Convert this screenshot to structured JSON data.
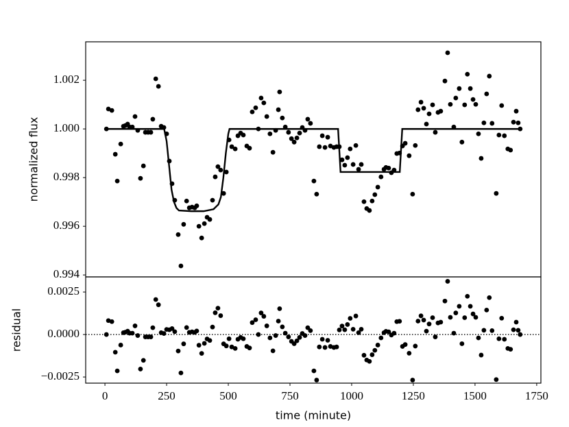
{
  "chart_data": [
    {
      "type": "scatter",
      "ylabel": "normalized flux",
      "color": "#000000",
      "xlim": [
        -78,
        1767
      ],
      "ylim": [
        0.99392,
        1.00358
      ],
      "yticks": [
        0.994,
        0.996,
        0.998,
        {
          "value": 1.0,
          "label": "1.000"
        },
        1.002
      ],
      "x": [
        6,
        14,
        28,
        42,
        50,
        64,
        75,
        83,
        92,
        100,
        111,
        122,
        133,
        144,
        156,
        164,
        175,
        186,
        194,
        206,
        217,
        228,
        239,
        250,
        261,
        272,
        283,
        297,
        308,
        319,
        331,
        342,
        353,
        364,
        372,
        381,
        392,
        403,
        414,
        425,
        436,
        447,
        458,
        469,
        481,
        492,
        503,
        514,
        528,
        539,
        550,
        561,
        575,
        586,
        597,
        611,
        622,
        633,
        644,
        656,
        669,
        681,
        692,
        703,
        708,
        719,
        731,
        744,
        756,
        767,
        778,
        789,
        800,
        811,
        822,
        833,
        847,
        858,
        869,
        881,
        892,
        903,
        914,
        928,
        939,
        950,
        961,
        972,
        983,
        994,
        1006,
        1017,
        1028,
        1039,
        1050,
        1061,
        1072,
        1083,
        1094,
        1106,
        1119,
        1131,
        1139,
        1150,
        1161,
        1172,
        1183,
        1194,
        1206,
        1217,
        1233,
        1247,
        1258,
        1269,
        1281,
        1292,
        1303,
        1314,
        1328,
        1339,
        1350,
        1361,
        1378,
        1389,
        1400,
        1414,
        1422,
        1436,
        1447,
        1458,
        1469,
        1481,
        1492,
        1503,
        1514,
        1525,
        1536,
        1547,
        1558,
        1569,
        1586,
        1597,
        1608,
        1619,
        1633,
        1644,
        1656,
        1667,
        1675,
        1683
      ],
      "values": [
        1.0,
        1.00082,
        1.00076,
        0.99896,
        0.99786,
        0.99938,
        1.00011,
        1.00014,
        1.0002,
        1.00008,
        1.00008,
        1.00051,
        0.99994,
        0.99797,
        0.99848,
        0.99986,
        0.99986,
        0.99986,
        1.0004,
        1.00206,
        1.00175,
        1.00011,
        1.00006,
        0.9998,
        0.99868,
        0.99775,
        0.99707,
        0.99566,
        0.99437,
        0.99608,
        0.99704,
        0.99676,
        0.99679,
        0.99676,
        0.99684,
        0.996,
        0.99552,
        0.99611,
        0.99637,
        0.99628,
        0.99707,
        0.99803,
        0.99845,
        0.99831,
        0.99735,
        0.99823,
        0.99955,
        0.99927,
        0.99918,
        0.99972,
        0.99983,
        0.99975,
        0.9993,
        0.99921,
        1.0007,
        1.00087,
        1.0,
        1.00127,
        1.00107,
        1.00051,
        0.9998,
        0.99904,
        0.99994,
        1.00079,
        1.00152,
        1.00045,
        1.00008,
        0.99986,
        0.9996,
        0.99946,
        0.99963,
        0.99983,
        1.00006,
        0.99994,
        1.0004,
        1.00023,
        0.99786,
        0.99732,
        0.99927,
        0.99972,
        0.99924,
        0.99966,
        0.9993,
        0.99924,
        0.99927,
        0.99927,
        0.99873,
        0.99851,
        0.99882,
        0.99918,
        0.99854,
        0.99932,
        0.99834,
        0.99854,
        0.99701,
        0.99673,
        0.99665,
        0.99704,
        0.9973,
        0.99761,
        0.99803,
        0.99834,
        0.99842,
        0.99839,
        0.9982,
        0.99831,
        0.99899,
        0.99901,
        0.9993,
        0.99941,
        0.9989,
        0.99732,
        0.99932,
        1.00079,
        1.0011,
        1.00085,
        1.0002,
        1.00062,
        1.00099,
        0.99986,
        1.00068,
        1.00073,
        1.00197,
        1.00313,
        1.00101,
        1.00008,
        1.00127,
        1.00166,
        0.99946,
        1.00099,
        1.00225,
        1.00166,
        1.00121,
        1.00101,
        0.9998,
        0.99879,
        1.00025,
        1.00144,
        1.00217,
        1.00023,
        0.99735,
        0.99975,
        1.00096,
        0.99972,
        0.99918,
        0.99913,
        1.00028,
        1.00073,
        1.00025,
        1.0
      ],
      "model": {
        "color": "#000000",
        "x": [
          0,
          240,
          250,
          260,
          270,
          280,
          290,
          300,
          350,
          400,
          440,
          460,
          470,
          480,
          490,
          500,
          505,
          945,
          955,
          1195,
          1205,
          1680
        ],
        "values": [
          1.0,
          1.0,
          0.9995,
          0.9985,
          0.9975,
          0.997,
          0.99675,
          0.99665,
          0.99662,
          0.99662,
          0.9967,
          0.9969,
          0.9972,
          0.998,
          0.999,
          0.9998,
          1.0,
          1.0,
          0.99823,
          0.99823,
          1.0,
          1.0
        ]
      }
    },
    {
      "type": "scatter",
      "ylabel": "residual",
      "xlabel": "time (minute)",
      "color": "#000000",
      "xlim": [
        -78,
        1767
      ],
      "ylim": [
        -0.00286,
        0.00339
      ],
      "xticks": [
        0,
        250,
        500,
        750,
        1000,
        1250,
        1500,
        1750
      ],
      "yticks": [
        {
          "value": -0.0025,
          "label": "−0.0025"
        },
        {
          "value": 0,
          "label": "0.0000"
        },
        0.0025
      ],
      "hline": 0,
      "x": [
        6,
        14,
        28,
        42,
        50,
        64,
        75,
        83,
        92,
        100,
        111,
        122,
        133,
        144,
        156,
        164,
        175,
        186,
        194,
        206,
        217,
        228,
        239,
        250,
        261,
        272,
        283,
        297,
        308,
        319,
        331,
        342,
        353,
        364,
        372,
        381,
        392,
        403,
        414,
        425,
        436,
        447,
        458,
        469,
        481,
        492,
        503,
        514,
        528,
        539,
        550,
        561,
        575,
        586,
        597,
        611,
        622,
        633,
        644,
        656,
        669,
        681,
        692,
        703,
        708,
        719,
        731,
        744,
        756,
        767,
        778,
        789,
        800,
        811,
        822,
        833,
        847,
        858,
        869,
        881,
        892,
        903,
        914,
        928,
        939,
        950,
        961,
        972,
        983,
        994,
        1006,
        1017,
        1028,
        1039,
        1050,
        1061,
        1072,
        1083,
        1094,
        1106,
        1119,
        1131,
        1139,
        1150,
        1161,
        1172,
        1183,
        1194,
        1206,
        1217,
        1233,
        1247,
        1258,
        1269,
        1281,
        1292,
        1303,
        1314,
        1328,
        1339,
        1350,
        1361,
        1378,
        1389,
        1400,
        1414,
        1422,
        1436,
        1447,
        1458,
        1469,
        1481,
        1492,
        1503,
        1514,
        1525,
        1536,
        1547,
        1558,
        1569,
        1586,
        1597,
        1608,
        1619,
        1633,
        1644,
        1656,
        1667,
        1675,
        1683
      ],
      "values": [
        0.0,
        0.00082,
        0.00076,
        -0.00104,
        -0.00214,
        -0.00062,
        0.00011,
        0.00014,
        0.0002,
        8e-05,
        8e-05,
        0.00051,
        -6e-05,
        -0.00203,
        -0.00152,
        -0.00014,
        -0.00014,
        -0.00014,
        0.0004,
        0.00206,
        0.00175,
        0.00011,
        6e-05,
        0.0003,
        0.00028,
        0.00035,
        0.00017,
        -0.00097,
        -0.00226,
        -0.00055,
        0.00041,
        0.00013,
        0.00016,
        0.00013,
        0.00021,
        -0.00063,
        -0.00111,
        -0.00052,
        -0.00026,
        -0.00035,
        0.00044,
        0.00128,
        0.00155,
        0.00111,
        -0.00055,
        -0.00067,
        -0.00025,
        -0.00073,
        -0.00082,
        -0.00028,
        -0.00017,
        -0.00025,
        -0.0007,
        -0.00079,
        0.0007,
        0.00087,
        0.0,
        0.00127,
        0.00107,
        0.00051,
        -0.0002,
        -0.00096,
        -6e-05,
        0.00079,
        0.00152,
        0.00045,
        8e-05,
        -0.00014,
        -0.0004,
        -0.00054,
        -0.00037,
        -0.00017,
        6e-05,
        -6e-05,
        0.0004,
        0.00023,
        -0.00214,
        -0.00268,
        -0.00073,
        -0.00028,
        -0.00076,
        -0.00034,
        -0.0007,
        -0.00076,
        -0.00073,
        0.00027,
        0.0005,
        0.00028,
        0.00059,
        0.00095,
        0.00031,
        0.00109,
        0.00011,
        0.00031,
        -0.00122,
        -0.0015,
        -0.00158,
        -0.00119,
        -0.00093,
        -0.00062,
        -0.0002,
        0.00011,
        0.00019,
        0.00016,
        -3e-05,
        8e-05,
        0.00076,
        0.00078,
        -0.0007,
        -0.00059,
        -0.0011,
        -0.00268,
        -0.00068,
        0.00079,
        0.0011,
        0.00085,
        0.0002,
        0.00062,
        0.00099,
        -0.00014,
        0.00068,
        0.00073,
        0.00197,
        0.00313,
        0.00101,
        8e-05,
        0.00127,
        0.00166,
        -0.00054,
        0.00099,
        0.00225,
        0.00166,
        0.00121,
        0.00101,
        -0.0002,
        -0.00121,
        0.00025,
        0.00144,
        0.00217,
        0.00023,
        -0.00265,
        -0.00025,
        0.00096,
        -0.00028,
        -0.00082,
        -0.00087,
        0.00028,
        0.00073,
        0.00025,
        0.0
      ]
    }
  ]
}
